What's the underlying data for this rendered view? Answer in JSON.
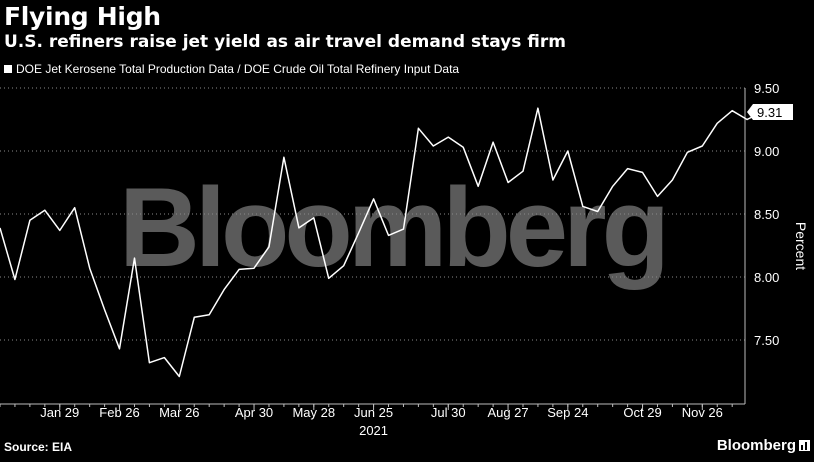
{
  "header": {
    "title": "Flying High",
    "subtitle": "U.S. refiners raise jet yield as air travel demand stays firm",
    "legend_label": "DOE Jet Kerosene Total Production Data / DOE Crude Oil Total Refinery Input Data"
  },
  "footer": {
    "source": "Source: EIA",
    "brand": "Bloomberg"
  },
  "watermark": "Bloomberg",
  "chart_data": {
    "type": "line",
    "ylabel": "Percent",
    "ylim": [
      7.0,
      9.5
    ],
    "yticks": [
      "9.50",
      "9.00",
      "8.50",
      "8.00",
      "7.50"
    ],
    "ytick_values": [
      9.5,
      9.0,
      8.5,
      8.0,
      7.5
    ],
    "xtick_labels": [
      "Jan 29",
      "Feb 26",
      "Mar 26",
      "Apr 30",
      "May 28",
      "Jun 25",
      "Jul 30",
      "Aug 27",
      "Sep 24",
      "Oct 29",
      "Nov 26"
    ],
    "xtick_dates": [
      "2021-01-29",
      "2021-02-26",
      "2021-03-26",
      "2021-04-30",
      "2021-05-28",
      "2021-06-25",
      "2021-07-30",
      "2021-08-27",
      "2021-09-24",
      "2021-10-29",
      "2021-11-26"
    ],
    "x_year_label": "2021",
    "xlim": [
      "2021-01-01",
      "2021-12-16"
    ],
    "last_value_label": "9.31",
    "grid": "horizontal-dotted",
    "series": [
      {
        "name": "DOE Jet Kerosene Total Production Data / DOE Crude Oil Total Refinery Input Data",
        "color": "#ffffff",
        "points": [
          [
            "2021-01-01",
            8.39
          ],
          [
            "2021-01-08",
            7.98
          ],
          [
            "2021-01-15",
            8.45
          ],
          [
            "2021-01-22",
            8.53
          ],
          [
            "2021-01-29",
            8.37
          ],
          [
            "2021-02-05",
            8.55
          ],
          [
            "2021-02-12",
            8.07
          ],
          [
            "2021-02-19",
            7.74
          ],
          [
            "2021-02-26",
            7.43
          ],
          [
            "2021-03-05",
            8.15
          ],
          [
            "2021-03-12",
            7.32
          ],
          [
            "2021-03-19",
            7.36
          ],
          [
            "2021-03-26",
            7.21
          ],
          [
            "2021-04-02",
            7.68
          ],
          [
            "2021-04-09",
            7.7
          ],
          [
            "2021-04-16",
            7.9
          ],
          [
            "2021-04-23",
            8.06
          ],
          [
            "2021-04-30",
            8.07
          ],
          [
            "2021-05-07",
            8.24
          ],
          [
            "2021-05-14",
            8.95
          ],
          [
            "2021-05-21",
            8.39
          ],
          [
            "2021-05-28",
            8.47
          ],
          [
            "2021-06-04",
            7.99
          ],
          [
            "2021-06-11",
            8.09
          ],
          [
            "2021-06-18",
            8.35
          ],
          [
            "2021-06-25",
            8.62
          ],
          [
            "2021-07-02",
            8.33
          ],
          [
            "2021-07-09",
            8.38
          ],
          [
            "2021-07-16",
            9.18
          ],
          [
            "2021-07-23",
            9.04
          ],
          [
            "2021-07-30",
            9.11
          ],
          [
            "2021-08-06",
            9.03
          ],
          [
            "2021-08-13",
            8.72
          ],
          [
            "2021-08-20",
            9.07
          ],
          [
            "2021-08-27",
            8.75
          ],
          [
            "2021-09-03",
            8.84
          ],
          [
            "2021-09-10",
            9.34
          ],
          [
            "2021-09-17",
            8.77
          ],
          [
            "2021-09-24",
            9.0
          ],
          [
            "2021-10-01",
            8.56
          ],
          [
            "2021-10-08",
            8.52
          ],
          [
            "2021-10-15",
            8.72
          ],
          [
            "2021-10-22",
            8.86
          ],
          [
            "2021-10-29",
            8.83
          ],
          [
            "2021-11-05",
            8.64
          ],
          [
            "2021-11-12",
            8.77
          ],
          [
            "2021-11-19",
            8.99
          ],
          [
            "2021-11-26",
            9.04
          ],
          [
            "2021-12-03",
            9.22
          ],
          [
            "2021-12-10",
            9.32
          ],
          [
            "2021-12-17",
            9.25
          ],
          [
            "2021-12-24",
            9.31
          ]
        ]
      }
    ]
  }
}
